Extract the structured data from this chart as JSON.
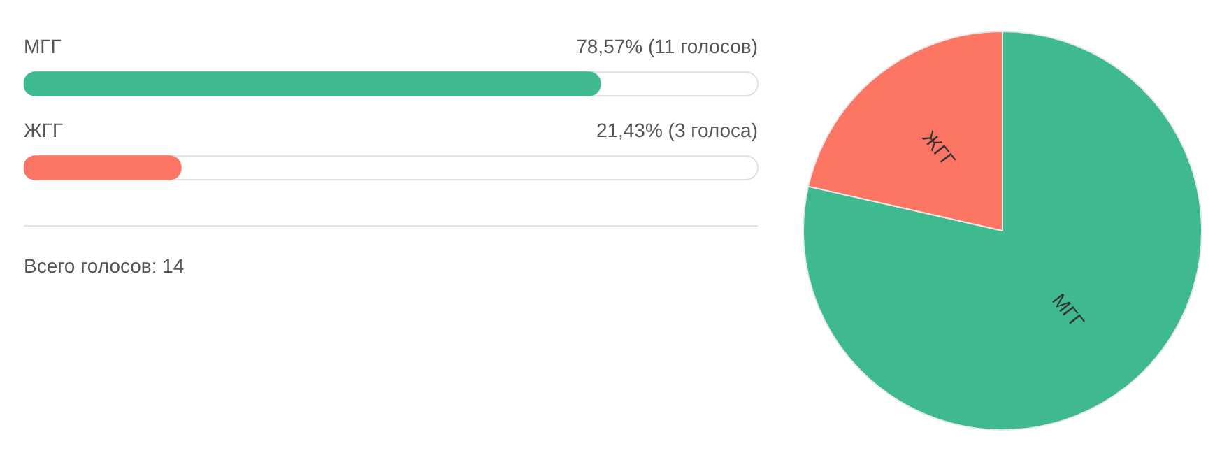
{
  "chart_data": [
    {
      "type": "bar",
      "orientation": "horizontal",
      "categories": [
        "МГГ",
        "ЖГГ"
      ],
      "values": [
        78.57,
        21.43
      ],
      "colors": [
        "#3fba8f",
        "#fd7563"
      ],
      "value_labels": [
        "78,57% (11 голосов)",
        "21,43% (3 голоса)"
      ],
      "xlim": [
        0,
        100
      ],
      "tick_labels": false,
      "annotations": [
        "Всего голосов: 14"
      ]
    },
    {
      "type": "pie",
      "categories": [
        "МГГ",
        "ЖГГ"
      ],
      "values": [
        78.57,
        21.43
      ],
      "colors": [
        "#3fba8f",
        "#fd7563"
      ]
    }
  ]
}
